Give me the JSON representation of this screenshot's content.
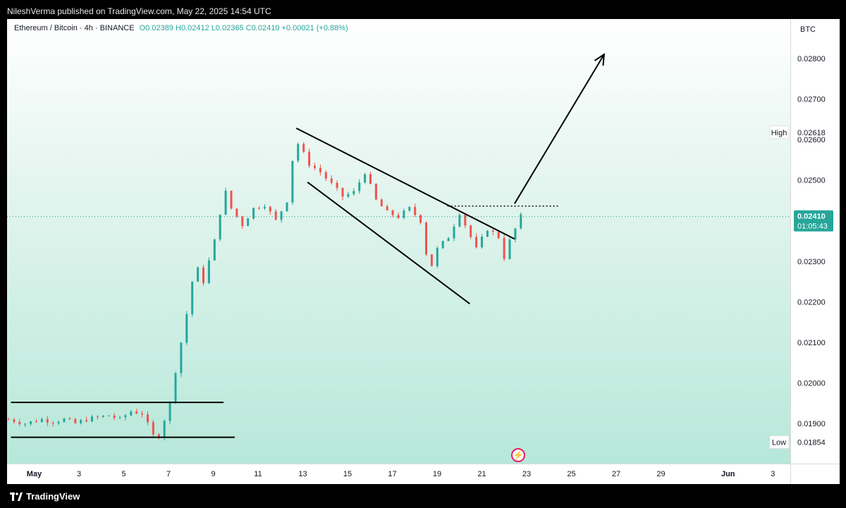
{
  "banner": "NileshVerma published on TradingView.com, May 22, 2025 14:54 UTC",
  "footer": {
    "brand": "TradingView",
    "logo": "tradingview-logo-icon"
  },
  "legend": {
    "symbol": "Ethereum / Bitcoin · 4h · BINANCE",
    "open": "O0.02389",
    "high": "H0.02412",
    "low": "L0.02365",
    "close": "C0.02410",
    "change": "+0.00021 (+0.88%)"
  },
  "colors": {
    "up": "#26a69a",
    "down": "#ef5350",
    "current": "#26a69a",
    "line": "#000000"
  },
  "chart_data": {
    "type": "candlestick",
    "currency": "BTC",
    "y_ticks": [
      "0.02800",
      "0.02700",
      "0.02600",
      "0.02500",
      "0.02300",
      "0.02200",
      "0.02100",
      "0.02000",
      "0.01900"
    ],
    "y_range": [
      0.0183,
      0.0288
    ],
    "x_ticks": [
      "May",
      "3",
      "5",
      "7",
      "9",
      "11",
      "13",
      "15",
      "17",
      "19",
      "21",
      "23",
      "25",
      "27",
      "29",
      "Jun",
      "3"
    ],
    "x_range_days": [
      "2025-05-01",
      "2025-06-03"
    ],
    "high_label": {
      "name": "High",
      "value": "0.02618"
    },
    "low_label": {
      "name": "Low",
      "value": "0.01854"
    },
    "last_price": {
      "value": "0.02410",
      "countdown": "01:05:43"
    },
    "candle_path": [
      [
        0,
        0.0191
      ],
      [
        3,
        0.019
      ],
      [
        6,
        0.0191
      ],
      [
        8,
        0.01905
      ],
      [
        10,
        0.0191
      ],
      [
        12,
        0.019
      ],
      [
        14,
        0.0191
      ],
      [
        16,
        0.01915
      ],
      [
        18,
        0.0192
      ],
      [
        20,
        0.0191
      ],
      [
        22,
        0.0193
      ],
      [
        24,
        0.01925
      ],
      [
        26,
        0.0187
      ],
      [
        27,
        0.0187
      ],
      [
        29,
        0.0195
      ],
      [
        30,
        0.0203
      ],
      [
        31,
        0.021
      ],
      [
        32,
        0.0217
      ],
      [
        33,
        0.0225
      ],
      [
        34,
        0.0228
      ],
      [
        35,
        0.0225
      ],
      [
        36,
        0.023
      ],
      [
        37,
        0.0235
      ],
      [
        38,
        0.0242
      ],
      [
        39,
        0.0247
      ],
      [
        40,
        0.0243
      ],
      [
        42,
        0.0239
      ],
      [
        44,
        0.0243
      ],
      [
        46,
        0.0244
      ],
      [
        48,
        0.024
      ],
      [
        50,
        0.0245
      ],
      [
        51,
        0.0255
      ],
      [
        52,
        0.0259
      ],
      [
        54,
        0.0254
      ],
      [
        56,
        0.0252
      ],
      [
        58,
        0.0249
      ],
      [
        60,
        0.0246
      ],
      [
        62,
        0.0247
      ],
      [
        64,
        0.0252
      ],
      [
        66,
        0.0245
      ],
      [
        68,
        0.0242
      ],
      [
        70,
        0.0241
      ],
      [
        72,
        0.0243
      ],
      [
        74,
        0.024
      ],
      [
        75,
        0.0232
      ],
      [
        76,
        0.0229
      ],
      [
        77,
        0.0233
      ],
      [
        79,
        0.0236
      ],
      [
        81,
        0.0242
      ],
      [
        82,
        0.0239
      ],
      [
        84,
        0.0233
      ],
      [
        86,
        0.0238
      ],
      [
        88,
        0.0236
      ],
      [
        89,
        0.0231
      ],
      [
        90,
        0.0235
      ],
      [
        91,
        0.0238
      ],
      [
        92,
        0.0241
      ]
    ],
    "annotations": [
      {
        "type": "trendline",
        "from": [
          "2025-05-13T18:00",
          0.02628
        ],
        "to": [
          "2025-05-23T12:00",
          0.02355
        ]
      },
      {
        "type": "trendline",
        "from": [
          "2025-05-14T06:00",
          0.02495
        ],
        "to": [
          "2025-05-21T12:00",
          0.02195
        ]
      },
      {
        "type": "horizontal-dotted",
        "from": [
          "2025-05-20T12:00",
          0.02436
        ],
        "to": [
          "2025-05-25T12:00",
          0.02436
        ]
      },
      {
        "type": "arrow",
        "from": [
          "2025-05-23T12:00",
          0.02442
        ],
        "to": [
          "2025-05-27T12:00",
          0.0281
        ]
      },
      {
        "type": "horizontal",
        "from": [
          "2025-05-01T00:00",
          0.01952
        ],
        "to": [
          "2025-05-10T12:00",
          0.01952
        ]
      },
      {
        "type": "horizontal",
        "from": [
          "2025-05-01T00:00",
          0.01866
        ],
        "to": [
          "2025-05-11T00:00",
          0.01866
        ]
      }
    ]
  }
}
